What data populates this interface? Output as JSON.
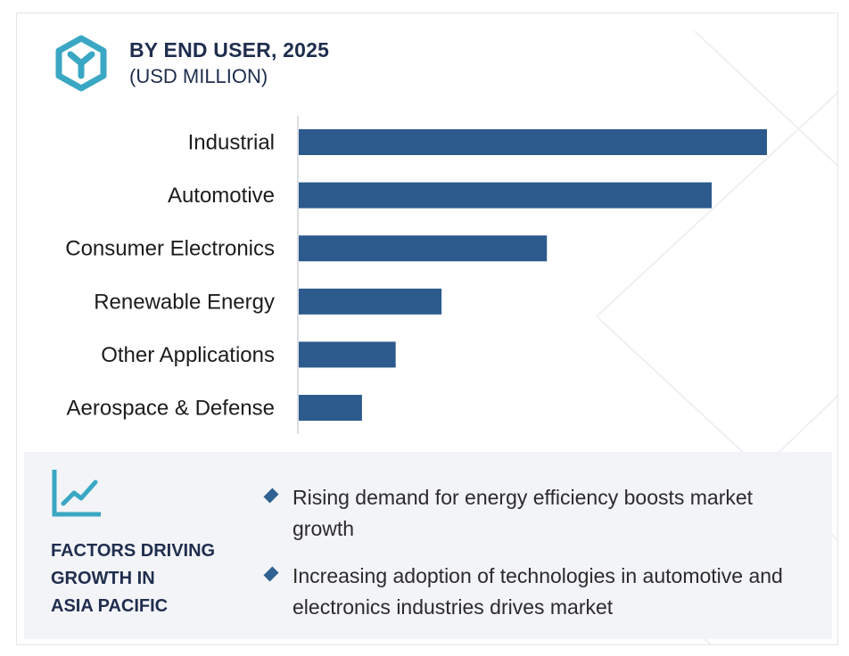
{
  "header": {
    "title": "BY END USER, 2025",
    "subtitle": "(USD MILLION)"
  },
  "colors": {
    "bar": "#2c5a8c",
    "heading": "#1f2d4e",
    "icon": "#3aa7c4",
    "panel_bg": "#f3f4f7"
  },
  "chart_data": {
    "type": "bar",
    "orientation": "horizontal",
    "categories": [
      "Industrial",
      "Automotive",
      "Consumer Electronics",
      "Renewable Energy",
      "Other Applications",
      "Aerospace & Defense"
    ],
    "values": [
      100,
      88.2,
      53.0,
      30.5,
      20.7,
      13.5
    ],
    "xlim": [
      0,
      100
    ],
    "grid": false,
    "legend": "none"
  },
  "factors": {
    "heading": "FACTORS DRIVING\nGROWTH IN\nASIA PACIFIC",
    "icon": "trend-line-icon",
    "bullets": [
      "Rising demand for energy efficiency boosts market growth",
      "Increasing adoption of technologies in automotive and electronics industries drives market"
    ]
  }
}
